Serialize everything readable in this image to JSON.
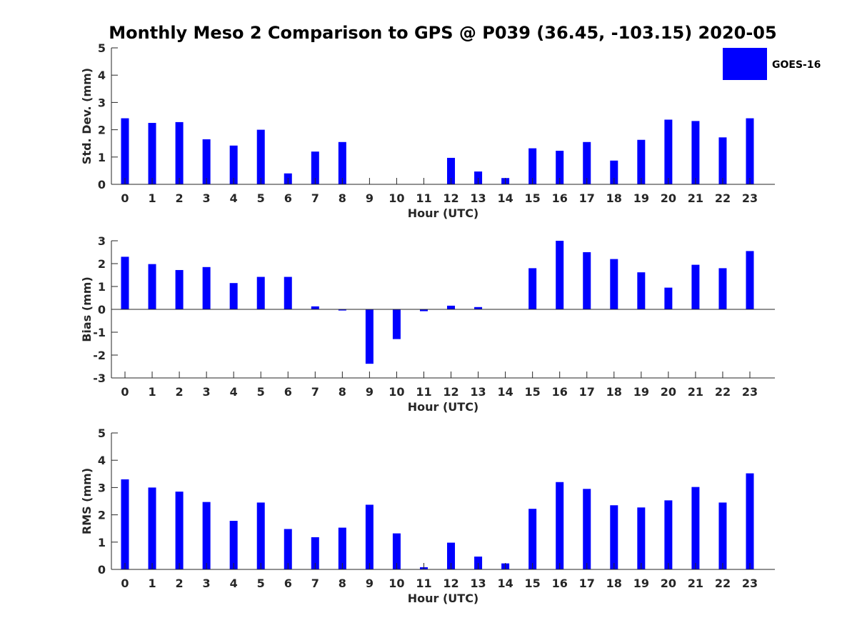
{
  "figure": {
    "title": "Monthly Meso 2 Comparison to GPS @ P039 (36.45, -103.15) 2020-05",
    "legend": {
      "label": "GOES-16",
      "color": "#0000ff",
      "placement": "top-right"
    }
  },
  "chart_data": [
    {
      "type": "bar",
      "categories": [
        "0",
        "1",
        "2",
        "3",
        "4",
        "5",
        "6",
        "7",
        "8",
        "9",
        "10",
        "11",
        "12",
        "13",
        "14",
        "15",
        "16",
        "17",
        "18",
        "19",
        "20",
        "21",
        "22",
        "23"
      ],
      "series": [
        {
          "name": "GOES-16",
          "values": [
            2.42,
            2.25,
            2.28,
            1.65,
            1.42,
            2.0,
            0.4,
            1.2,
            1.55,
            0.0,
            0.0,
            0.0,
            0.97,
            0.47,
            0.23,
            1.32,
            1.23,
            1.55,
            0.87,
            1.63,
            2.37,
            2.32,
            1.72,
            2.42
          ]
        }
      ],
      "xlabel": "Hour (UTC)",
      "ylabel": "Std. Dev. (mm)",
      "ylim": [
        0,
        5
      ],
      "yticks": [
        0,
        1,
        2,
        3,
        4,
        5
      ],
      "grid": false,
      "color": "#0000ff"
    },
    {
      "type": "bar",
      "categories": [
        "0",
        "1",
        "2",
        "3",
        "4",
        "5",
        "6",
        "7",
        "8",
        "9",
        "10",
        "11",
        "12",
        "13",
        "14",
        "15",
        "16",
        "17",
        "18",
        "19",
        "20",
        "21",
        "22",
        "23"
      ],
      "series": [
        {
          "name": "GOES-16",
          "values": [
            2.3,
            1.98,
            1.72,
            1.85,
            1.15,
            1.42,
            1.42,
            0.13,
            -0.05,
            -2.38,
            -1.3,
            -0.08,
            0.16,
            0.1,
            0.0,
            1.8,
            3.0,
            2.5,
            2.2,
            1.62,
            0.95,
            1.95,
            1.8,
            2.55
          ]
        }
      ],
      "xlabel": "Hour (UTC)",
      "ylabel": "Bias (mm)",
      "ylim": [
        -3,
        3
      ],
      "yticks": [
        -3,
        -2,
        -1,
        0,
        1,
        2,
        3
      ],
      "grid": false,
      "color": "#0000ff"
    },
    {
      "type": "bar",
      "categories": [
        "0",
        "1",
        "2",
        "3",
        "4",
        "5",
        "6",
        "7",
        "8",
        "9",
        "10",
        "11",
        "12",
        "13",
        "14",
        "15",
        "16",
        "17",
        "18",
        "19",
        "20",
        "21",
        "22",
        "23"
      ],
      "series": [
        {
          "name": "GOES-16",
          "values": [
            3.3,
            3.0,
            2.85,
            2.47,
            1.78,
            2.45,
            1.48,
            1.18,
            1.53,
            2.37,
            1.32,
            0.08,
            0.98,
            0.47,
            0.22,
            2.22,
            3.2,
            2.95,
            2.35,
            2.27,
            2.53,
            3.02,
            2.45,
            3.52
          ]
        }
      ],
      "xlabel": "Hour (UTC)",
      "ylabel": "RMS (mm)",
      "ylim": [
        0,
        5
      ],
      "yticks": [
        0,
        1,
        2,
        3,
        4,
        5
      ],
      "grid": false,
      "color": "#0000ff"
    }
  ]
}
